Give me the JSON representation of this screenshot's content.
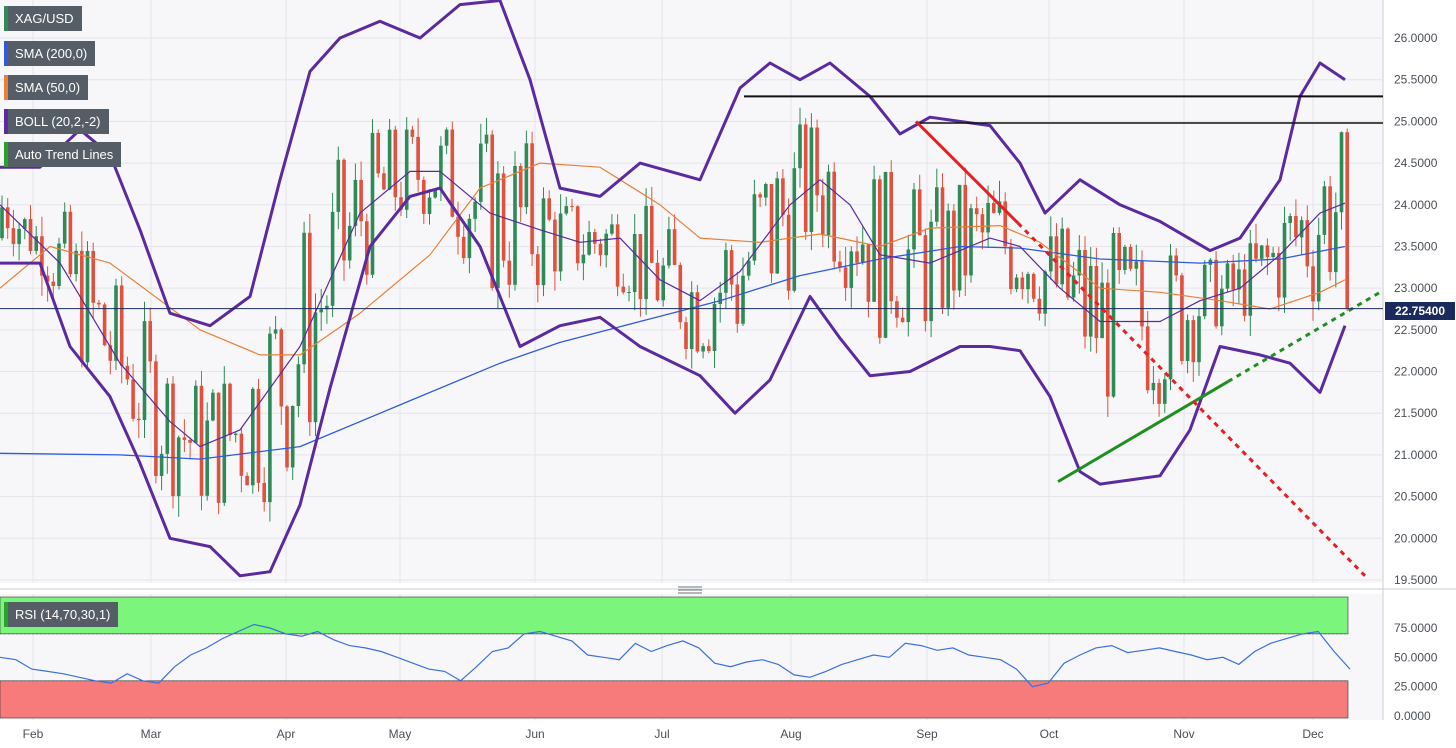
{
  "legend": [
    {
      "label": "XAG/USD",
      "color": "#2e8b57"
    },
    {
      "label": "SMA (200,0)",
      "color": "#2f5bdc"
    },
    {
      "label": "SMA (50,0)",
      "color": "#e8803a"
    },
    {
      "label": "BOLL (20,2,-2)",
      "color": "#5b2a9e"
    },
    {
      "label": "Auto Trend Lines",
      "color": "#2ba02b"
    }
  ],
  "rsi_legend": {
    "label": "RSI (14,70,30,1)",
    "color": "#2ba02b"
  },
  "last_price": "22.75400",
  "colors": {
    "up": "#2e8b57",
    "down": "#e0523f",
    "sma200": "#2f5bdc",
    "sma50": "#e8803a",
    "boll": "#5b2a9e",
    "overbought": "#7cf57c",
    "oversold": "#f77b7b",
    "rsi": "#3b6fe0",
    "trend_green": "#1f8f1f",
    "trend_red": "#e62020",
    "price_line": "#1a2a5c"
  },
  "chart_data": [
    {
      "type": "candlestick",
      "title": "XAG/USD",
      "x_axis_labels": [
        "Feb",
        "Mar",
        "Apr",
        "May",
        "Jun",
        "Jul",
        "Aug",
        "Sep",
        "Oct",
        "Nov",
        "Dec"
      ],
      "y_ticks": [
        "26.0000",
        "25.5000",
        "25.0000",
        "24.5000",
        "24.0000",
        "23.5000",
        "23.0000",
        "22.5000",
        "22.0000",
        "21.5000",
        "21.0000",
        "20.5000",
        "20.0000",
        "19.5000"
      ],
      "ylim": [
        19.5,
        26.5
      ],
      "last_close": 22.754,
      "series": [
        {
          "name": "SMA (200,0)",
          "points": [
            [
              0,
              21.02
            ],
            [
              120,
              21.0
            ],
            [
              200,
              20.95
            ],
            [
              300,
              21.1
            ],
            [
              400,
              21.6
            ],
            [
              500,
              22.1
            ],
            [
              560,
              22.35
            ],
            [
              640,
              22.6
            ],
            [
              720,
              22.85
            ],
            [
              800,
              23.15
            ],
            [
              880,
              23.35
            ],
            [
              960,
              23.5
            ],
            [
              1020,
              23.48
            ],
            [
              1100,
              23.35
            ],
            [
              1200,
              23.3
            ],
            [
              1280,
              23.35
            ],
            [
              1345,
              23.5
            ]
          ]
        },
        {
          "name": "SMA (50,0)",
          "points": [
            [
              0,
              23.0
            ],
            [
              50,
              23.5
            ],
            [
              110,
              23.3
            ],
            [
              200,
              22.5
            ],
            [
              260,
              22.2
            ],
            [
              300,
              22.2
            ],
            [
              360,
              22.7
            ],
            [
              430,
              23.4
            ],
            [
              480,
              24.2
            ],
            [
              540,
              24.5
            ],
            [
              600,
              24.45
            ],
            [
              660,
              24.0
            ],
            [
              700,
              23.6
            ],
            [
              760,
              23.55
            ],
            [
              820,
              23.65
            ],
            [
              880,
              23.5
            ],
            [
              930,
              23.72
            ],
            [
              1000,
              23.75
            ],
            [
              1040,
              23.55
            ],
            [
              1100,
              23.0
            ],
            [
              1160,
              22.95
            ],
            [
              1220,
              22.85
            ],
            [
              1270,
              22.75
            ],
            [
              1320,
              22.95
            ],
            [
              1345,
              23.1
            ]
          ]
        },
        {
          "name": "BOLL (20,2,-2) mid",
          "points": [
            [
              0,
              24.0
            ],
            [
              60,
              23.3
            ],
            [
              120,
              22.1
            ],
            [
              170,
              21.4
            ],
            [
              200,
              21.1
            ],
            [
              240,
              21.3
            ],
            [
              300,
              22.3
            ],
            [
              360,
              23.9
            ],
            [
              410,
              24.4
            ],
            [
              440,
              24.4
            ],
            [
              490,
              23.9
            ],
            [
              540,
              23.7
            ],
            [
              580,
              23.55
            ],
            [
              620,
              23.6
            ],
            [
              660,
              23.1
            ],
            [
              700,
              22.85
            ],
            [
              740,
              23.2
            ],
            [
              790,
              24.0
            ],
            [
              820,
              24.3
            ],
            [
              850,
              24.0
            ],
            [
              880,
              23.4
            ],
            [
              930,
              23.3
            ],
            [
              990,
              23.6
            ],
            [
              1020,
              23.5
            ],
            [
              1060,
              23.0
            ],
            [
              1100,
              22.6
            ],
            [
              1160,
              22.6
            ],
            [
              1200,
              22.85
            ],
            [
              1240,
              23.0
            ],
            [
              1280,
              23.4
            ],
            [
              1320,
              23.9
            ],
            [
              1345,
              24.02
            ]
          ]
        },
        {
          "name": "BOLL (20,2,-2) upper",
          "points": [
            [
              0,
              24.45
            ],
            [
              40,
              24.45
            ],
            [
              80,
              24.9
            ],
            [
              110,
              24.6
            ],
            [
              140,
              23.7
            ],
            [
              170,
              22.7
            ],
            [
              210,
              22.55
            ],
            [
              250,
              22.9
            ],
            [
              280,
              24.3
            ],
            [
              310,
              25.6
            ],
            [
              340,
              26.0
            ],
            [
              380,
              26.2
            ],
            [
              420,
              26.0
            ],
            [
              460,
              26.4
            ],
            [
              500,
              26.45
            ],
            [
              530,
              25.5
            ],
            [
              560,
              24.2
            ],
            [
              600,
              24.1
            ],
            [
              640,
              24.5
            ],
            [
              700,
              24.3
            ],
            [
              740,
              25.4
            ],
            [
              770,
              25.7
            ],
            [
              800,
              25.5
            ],
            [
              830,
              25.7
            ],
            [
              870,
              25.3
            ],
            [
              900,
              24.85
            ],
            [
              930,
              25.05
            ],
            [
              990,
              24.95
            ],
            [
              1020,
              24.5
            ],
            [
              1045,
              23.9
            ],
            [
              1080,
              24.3
            ],
            [
              1120,
              24.0
            ],
            [
              1160,
              23.8
            ],
            [
              1210,
              23.45
            ],
            [
              1240,
              23.6
            ],
            [
              1280,
              24.3
            ],
            [
              1300,
              25.3
            ],
            [
              1320,
              25.7
            ],
            [
              1345,
              25.5
            ]
          ]
        },
        {
          "name": "BOLL (20,2,-2) lower",
          "points": [
            [
              0,
              23.3
            ],
            [
              40,
              23.3
            ],
            [
              70,
              22.3
            ],
            [
              110,
              21.7
            ],
            [
              140,
              20.9
            ],
            [
              170,
              20.0
            ],
            [
              210,
              19.9
            ],
            [
              240,
              19.55
            ],
            [
              270,
              19.6
            ],
            [
              300,
              20.4
            ],
            [
              330,
              21.8
            ],
            [
              370,
              23.5
            ],
            [
              410,
              24.1
            ],
            [
              440,
              24.2
            ],
            [
              480,
              23.5
            ],
            [
              520,
              22.3
            ],
            [
              560,
              22.55
            ],
            [
              600,
              22.65
            ],
            [
              640,
              22.3
            ],
            [
              700,
              21.95
            ],
            [
              735,
              21.5
            ],
            [
              770,
              21.9
            ],
            [
              810,
              22.9
            ],
            [
              840,
              22.4
            ],
            [
              870,
              21.95
            ],
            [
              910,
              22.0
            ],
            [
              960,
              22.3
            ],
            [
              990,
              22.3
            ],
            [
              1020,
              22.25
            ],
            [
              1050,
              21.7
            ],
            [
              1080,
              20.8
            ],
            [
              1100,
              20.65
            ],
            [
              1160,
              20.75
            ],
            [
              1190,
              21.3
            ],
            [
              1220,
              22.3
            ],
            [
              1260,
              22.2
            ],
            [
              1290,
              22.1
            ],
            [
              1320,
              21.75
            ],
            [
              1345,
              22.55
            ]
          ]
        }
      ],
      "horizontal_lines": [
        25.3,
        24.98
      ],
      "trend_lines": [
        {
          "name": "support",
          "from": [
            1058,
            20.68
          ],
          "to": [
            1228,
            21.88
          ]
        },
        {
          "name": "support-ext",
          "from": [
            1228,
            21.88
          ],
          "to": [
            1380,
            22.95
          ]
        },
        {
          "name": "resistance",
          "from": [
            916,
            25.0
          ],
          "to": [
            1018,
            23.78
          ]
        },
        {
          "name": "resistance-ext",
          "from": [
            1018,
            23.78
          ],
          "to": [
            1365,
            19.55
          ]
        }
      ]
    },
    {
      "type": "line",
      "title": "RSI (14,70,30,1)",
      "y_ticks": [
        "75.0000",
        "50.0000",
        "25.0000",
        "0.0000"
      ],
      "ylim": [
        0,
        100
      ],
      "overbought": 70,
      "oversold": 30,
      "values": [
        50,
        48,
        40,
        38,
        36,
        33,
        30,
        28,
        36,
        30,
        28,
        42,
        52,
        58,
        66,
        72,
        78,
        75,
        70,
        68,
        72,
        65,
        60,
        58,
        55,
        50,
        45,
        40,
        38,
        30,
        42,
        55,
        58,
        70,
        72,
        68,
        64,
        52,
        50,
        48,
        62,
        55,
        60,
        64,
        58,
        45,
        42,
        46,
        48,
        44,
        35,
        33,
        38,
        44,
        48,
        52,
        50,
        62,
        60,
        56,
        58,
        52,
        50,
        48,
        40,
        25,
        28,
        45,
        52,
        58,
        60,
        54,
        56,
        58,
        55,
        52,
        48,
        50,
        44,
        55,
        62,
        66,
        70,
        72,
        55,
        40
      ]
    }
  ]
}
